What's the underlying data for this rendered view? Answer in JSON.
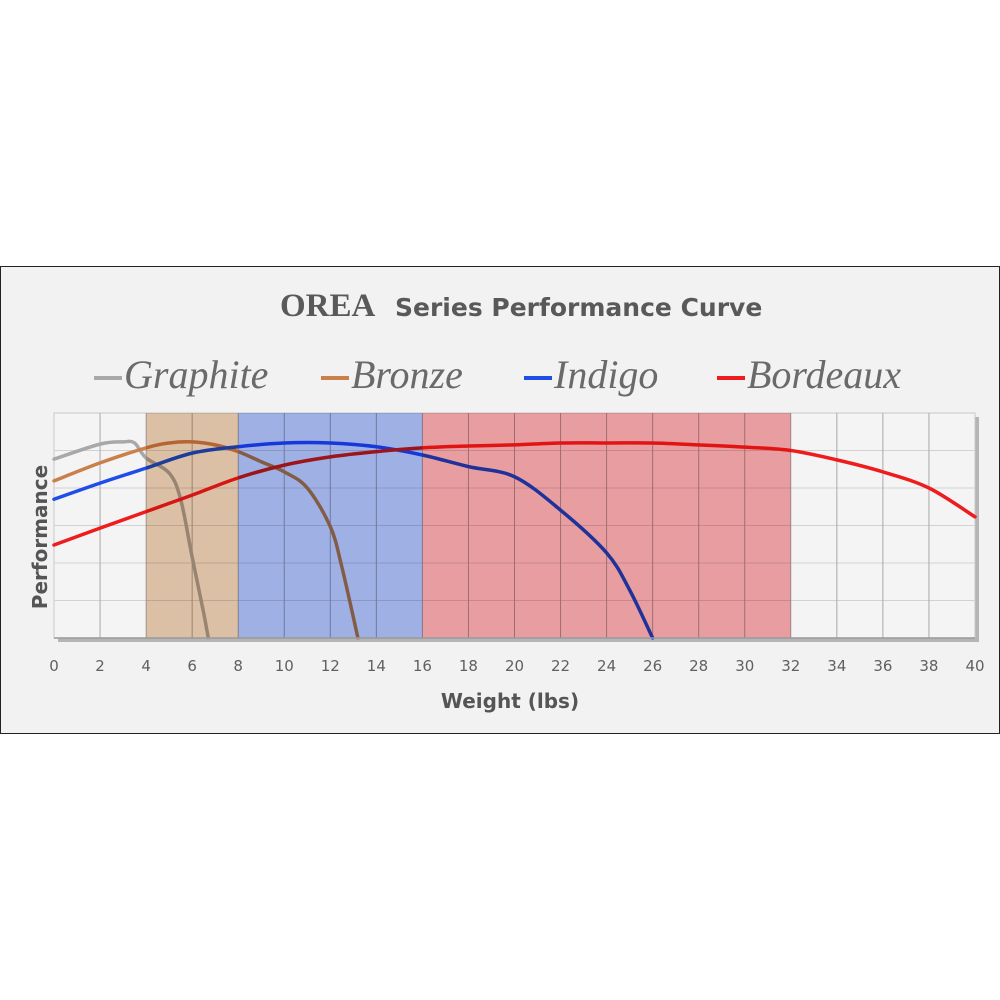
{
  "chart_data": {
    "type": "line",
    "title": {
      "brand": "OREA",
      "rest": "Series Performance Curve"
    },
    "xlabel": "Weight (lbs)",
    "ylabel": "Performance",
    "xlim": [
      0,
      40
    ],
    "ylim": [
      0,
      6
    ],
    "x_ticks": [
      0,
      2,
      4,
      6,
      8,
      10,
      12,
      14,
      16,
      18,
      20,
      22,
      24,
      26,
      28,
      30,
      32,
      34,
      36,
      38,
      40
    ],
    "y_ticks_labeled": false,
    "grid": true,
    "legend_position": "top",
    "bands": [
      {
        "series": "Bronze",
        "from": 4,
        "to": 8,
        "color": "#e6c9ae"
      },
      {
        "series": "Indigo",
        "from": 8,
        "to": 16,
        "color": "#a6b8f0"
      },
      {
        "series": "Bordeaux",
        "from": 16,
        "to": 32,
        "color": "#f3a5a8"
      }
    ],
    "series": [
      {
        "name": "Graphite",
        "color": "#a8a8a8",
        "x": [
          0,
          2,
          3,
          3.5,
          4,
          5,
          5.5,
          6,
          6.5,
          6.7
        ],
        "y": [
          4.77,
          5.17,
          5.23,
          5.2,
          4.8,
          4.4,
          3.7,
          2.16,
          0.67,
          0
        ]
      },
      {
        "name": "Bronze",
        "color": "#c9804a",
        "x": [
          0,
          2,
          4,
          5,
          6,
          7,
          8,
          9,
          10,
          11,
          12,
          12.5,
          13.2
        ],
        "y": [
          4.19,
          4.67,
          5.07,
          5.2,
          5.23,
          5.15,
          4.97,
          4.7,
          4.43,
          4.0,
          2.97,
          1.9,
          0
        ]
      },
      {
        "name": "Indigo",
        "color": "#1f4de8",
        "x": [
          0,
          2,
          4,
          6,
          8,
          10,
          12,
          14,
          16,
          18,
          20,
          22,
          24,
          25,
          26
        ],
        "y": [
          3.7,
          4.13,
          4.53,
          4.93,
          5.1,
          5.2,
          5.2,
          5.1,
          4.88,
          4.57,
          4.3,
          3.41,
          2.27,
          1.28,
          0
        ]
      },
      {
        "name": "Bordeaux",
        "color": "#ee1c1c",
        "x": [
          0,
          2,
          4,
          6,
          8,
          10,
          12,
          14,
          16,
          18,
          20,
          22,
          24,
          26,
          28,
          30,
          32,
          34,
          36,
          38,
          40
        ],
        "y": [
          2.48,
          2.93,
          3.37,
          3.81,
          4.27,
          4.61,
          4.83,
          4.97,
          5.07,
          5.12,
          5.15,
          5.2,
          5.2,
          5.2,
          5.15,
          5.09,
          5.0,
          4.75,
          4.43,
          4.0,
          3.23
        ]
      }
    ]
  }
}
